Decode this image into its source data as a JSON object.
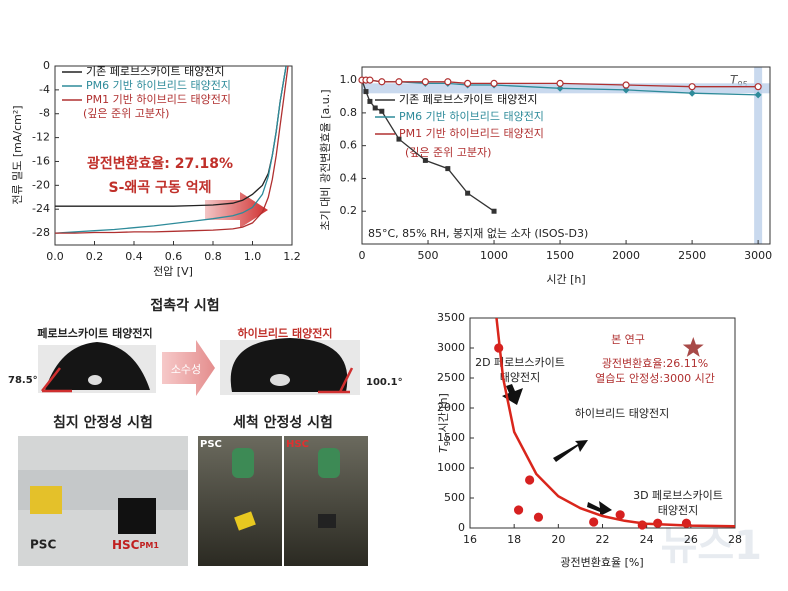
{
  "chart_data": [
    {
      "type": "line",
      "xlabel": "전압 [V]",
      "ylabel": "전류 밀도 [mA/cm²]",
      "xlim": [
        0,
        1.2
      ],
      "ylim": [
        -30,
        0
      ],
      "xticks": [
        {
          "value": 0,
          "label": "0.0"
        },
        {
          "value": 0.2,
          "label": "0.2"
        },
        {
          "value": 0.4,
          "label": "0.4"
        },
        {
          "value": 0.6,
          "label": "0.6"
        },
        {
          "value": 0.8,
          "label": "0.8"
        },
        {
          "value": 1.0,
          "label": "1.0"
        },
        {
          "value": 1.2,
          "label": "1.2"
        }
      ],
      "yticks": [
        0,
        -4,
        -8,
        -12,
        -16,
        -20,
        -24,
        -28
      ],
      "legend": "upper left",
      "legend_note": "(깊은 준위 고분자)",
      "annotations": [
        "광전변환효율: 27.18%",
        "S-왜곡 구동 억제"
      ],
      "series": [
        {
          "name": "기존 페로브스카이트 태양전지",
          "color": "#222222",
          "x": [
            0,
            0.1,
            0.2,
            0.3,
            0.4,
            0.5,
            0.6,
            0.7,
            0.8,
            0.9,
            0.95,
            1.0,
            1.05,
            1.08,
            1.1,
            1.12,
            1.14,
            1.16,
            1.17
          ],
          "values": [
            -23.5,
            -23.5,
            -23.5,
            -23.5,
            -23.5,
            -23.5,
            -23.5,
            -23.4,
            -23.3,
            -23,
            -22.5,
            -21.5,
            -20,
            -18,
            -15,
            -11,
            -6,
            -2,
            0
          ]
        },
        {
          "name": "PM6 기반 하이브리드 태양전지",
          "color": "#2e8b9a",
          "x": [
            0,
            0.1,
            0.2,
            0.3,
            0.4,
            0.5,
            0.6,
            0.7,
            0.8,
            0.9,
            0.95,
            1.0,
            1.05,
            1.08,
            1.1,
            1.12,
            1.14,
            1.16,
            1.17
          ],
          "values": [
            -28,
            -27.8,
            -27.6,
            -27.4,
            -27.1,
            -26.8,
            -26.4,
            -26,
            -25.6,
            -25.1,
            -24.6,
            -23.7,
            -21.5,
            -18.5,
            -15,
            -11,
            -6,
            -2,
            0
          ]
        },
        {
          "name": "PM1 기반 하이브리드 태양전지",
          "color": "#b03030",
          "x": [
            0,
            0.1,
            0.2,
            0.3,
            0.4,
            0.5,
            0.6,
            0.7,
            0.8,
            0.9,
            0.95,
            1.0,
            1.05,
            1.08,
            1.1,
            1.12,
            1.14,
            1.16,
            1.18
          ],
          "values": [
            -28,
            -28,
            -27.9,
            -27.9,
            -27.8,
            -27.8,
            -27.7,
            -27.6,
            -27.5,
            -27.3,
            -27,
            -26.3,
            -24.5,
            -22,
            -19,
            -15,
            -10,
            -5,
            0
          ]
        }
      ]
    },
    {
      "type": "line",
      "xlabel": "시간 [h]",
      "ylabel": "초기 대비 광전변환효율 [a.u.]",
      "xlim": [
        0,
        3090
      ],
      "ylim": [
        0,
        1.08
      ],
      "xticks": [
        0,
        500,
        1000,
        1500,
        2000,
        2500,
        3000
      ],
      "yticks": [
        0.2,
        0.4,
        0.6,
        0.8,
        {
          "value": 1.0,
          "label": "1.0"
        }
      ],
      "legend": "center left",
      "legend_note": "(깊은 준위 고분자)",
      "annotations": [
        "85°C, 85% RH, 봉지재 없는 소자 (ISOS-D3)"
      ],
      "t95_label": {
        "main": "T",
        "sub": "95"
      },
      "t95_level": 0.95,
      "t95_time": 3000,
      "series": [
        {
          "name": "기존 페로브스카이트 태양전지",
          "color": "#333333",
          "marker": "square",
          "x": [
            0,
            30,
            60,
            100,
            150,
            280,
            480,
            650,
            800,
            1000
          ],
          "values": [
            1.0,
            0.93,
            0.87,
            0.83,
            0.81,
            0.64,
            0.51,
            0.46,
            0.31,
            0.2
          ]
        },
        {
          "name": "PM6 기반 하이브리드 태양전지",
          "color": "#2e8b9a",
          "marker": "diamond",
          "x": [
            0,
            30,
            60,
            150,
            280,
            480,
            650,
            800,
            1000,
            1500,
            2000,
            2500,
            3000
          ],
          "values": [
            1.0,
            1.0,
            1.0,
            0.99,
            0.99,
            0.98,
            0.98,
            0.97,
            0.97,
            0.95,
            0.94,
            0.92,
            0.91
          ]
        },
        {
          "name": "PM1 기반 하이브리드 태양전지",
          "color": "#b03030",
          "marker": "circle",
          "x": [
            0,
            30,
            60,
            150,
            280,
            480,
            650,
            800,
            1000,
            1500,
            2000,
            2500,
            3000
          ],
          "values": [
            1.0,
            1.0,
            1.0,
            0.99,
            0.99,
            0.99,
            0.99,
            0.98,
            0.98,
            0.98,
            0.97,
            0.96,
            0.96
          ]
        }
      ]
    },
    {
      "type": "scatter",
      "xlabel": "광전변환효율 [%]",
      "ylabel": {
        "italic": "T",
        "sub": "95",
        "rest": " 시간 [h]"
      },
      "xlim": [
        16,
        28
      ],
      "ylim": [
        0,
        3500
      ],
      "xticks": [
        16,
        18,
        20,
        22,
        24,
        26,
        28
      ],
      "yticks": [
        0,
        500,
        1000,
        1500,
        2000,
        2500,
        3000,
        3500
      ],
      "annotations": [
        "2D 페로브스카이트",
        "태양전지",
        "하이브리드 태양전지",
        "3D 페로브스카이트",
        "태양전지",
        "본 연구",
        "광전변환효율:26.11%",
        "열습도 안정성:3000 시간"
      ],
      "series": [
        {
          "color": "#d62020",
          "marker": "circle",
          "x": [
            17.3,
            18.2,
            18.7,
            19.1,
            21.6,
            22.8,
            23.8,
            24.5,
            25.8
          ],
          "values": [
            3000,
            300,
            800,
            180,
            100,
            220,
            50,
            80,
            80
          ]
        },
        {
          "color": "#a84a48",
          "marker": "star",
          "x": [
            26.11
          ],
          "values": [
            3000
          ]
        },
        {
          "color": "#d9261c",
          "mode": "line",
          "x": [
            17.2,
            17.5,
            18,
            19,
            20,
            21,
            22,
            23,
            24,
            26,
            28
          ],
          "values": [
            3500,
            2500,
            1600,
            900,
            530,
            330,
            200,
            120,
            70,
            40,
            30
          ]
        }
      ]
    }
  ],
  "photos": {
    "contact_title": "접촉각 시험",
    "left_label": "페로브스카이트 태양전지",
    "right_label": "하이브리드 태양전지",
    "arrow_label": "소수성",
    "left_angle": "78.5°",
    "right_angle": "100.1°",
    "immersion_title": "침지 안정성 시험",
    "wash_title": "세척 안정성 시험",
    "immersion_psc": "PSC",
    "immersion_hsc": "HSC",
    "immersion_hsc_sub": "PM1",
    "wash_psc": "PSC",
    "wash_hsc": "HSC"
  },
  "watermark": "뉴스1"
}
